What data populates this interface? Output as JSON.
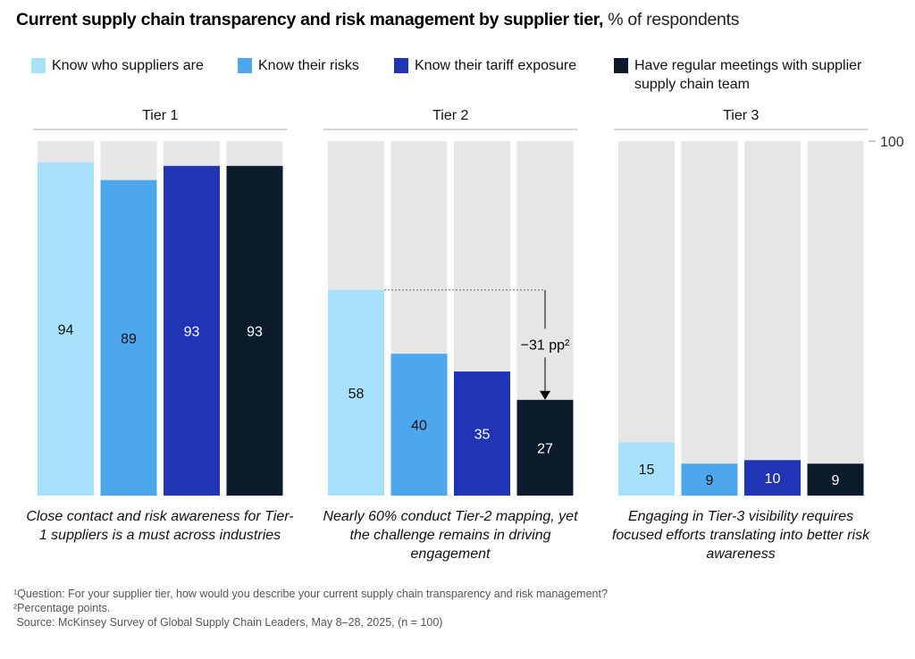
{
  "title": "Current supply chain transparency and risk management by supplier tier,",
  "subtitle": "% of respondents",
  "colors": {
    "track": "#e6e6e6",
    "series": [
      "#a8e1fb",
      "#4ca7ec",
      "#2034b5",
      "#0c1b2b"
    ],
    "label_text": [
      "#111111",
      "#111111",
      "#ffffff",
      "#ffffff"
    ]
  },
  "legend": [
    {
      "label": "Know who suppliers are"
    },
    {
      "label": "Know their risks"
    },
    {
      "label": "Know their tariff exposure"
    },
    {
      "label": "Have regular meetings with supplier supply chain team"
    }
  ],
  "chart_data": {
    "type": "bar",
    "ylim": [
      0,
      100
    ],
    "y_tick_label": "100",
    "grid": false,
    "legend_position": "top",
    "categories": [
      "Tier 1",
      "Tier 2",
      "Tier 3"
    ],
    "series": [
      {
        "name": "Know who suppliers are",
        "values": [
          94,
          58,
          15
        ]
      },
      {
        "name": "Know their risks",
        "values": [
          89,
          40,
          9
        ]
      },
      {
        "name": "Know their tariff exposure",
        "values": [
          93,
          35,
          10
        ]
      },
      {
        "name": "Have regular meetings with supplier supply chain team",
        "values": [
          93,
          27,
          9
        ]
      }
    ],
    "annotation": {
      "category": "Tier 2",
      "from_series": 0,
      "to_series": 3,
      "label": "−31 pp²"
    }
  },
  "notes": [
    "Close contact and risk awareness for Tier-1 suppliers is a must across industries",
    "Nearly 60% conduct Tier-2 mapping, yet the challenge remains in driving engagement",
    "Engaging in Tier-3 visibility requires focused efforts translating into better risk awareness"
  ],
  "footnotes": [
    "¹Question: For your supplier tier, how would you describe your current supply chain transparency and risk management?",
    "²Percentage points.",
    " Source: McKinsey Survey of Global Supply Chain Leaders, May 8–28, 2025, (n = 100)"
  ]
}
